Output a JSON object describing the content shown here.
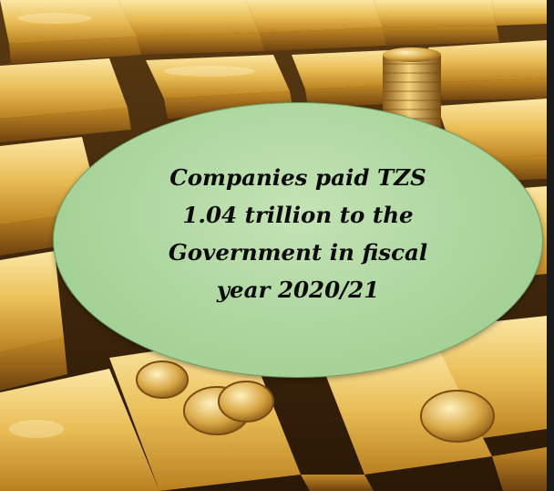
{
  "image": {
    "description_icon": "gold-bars-and-coins-photo",
    "colors": {
      "callout_fill": "#a9d49a",
      "callout_border": "#6f9a5f",
      "text": "#0a0a0a",
      "gold": "#d9a53a"
    }
  },
  "callout": {
    "lines": [
      "Companies paid TZS",
      "1.04 trillion to the",
      "Government in fiscal",
      "year 2020/21"
    ]
  }
}
